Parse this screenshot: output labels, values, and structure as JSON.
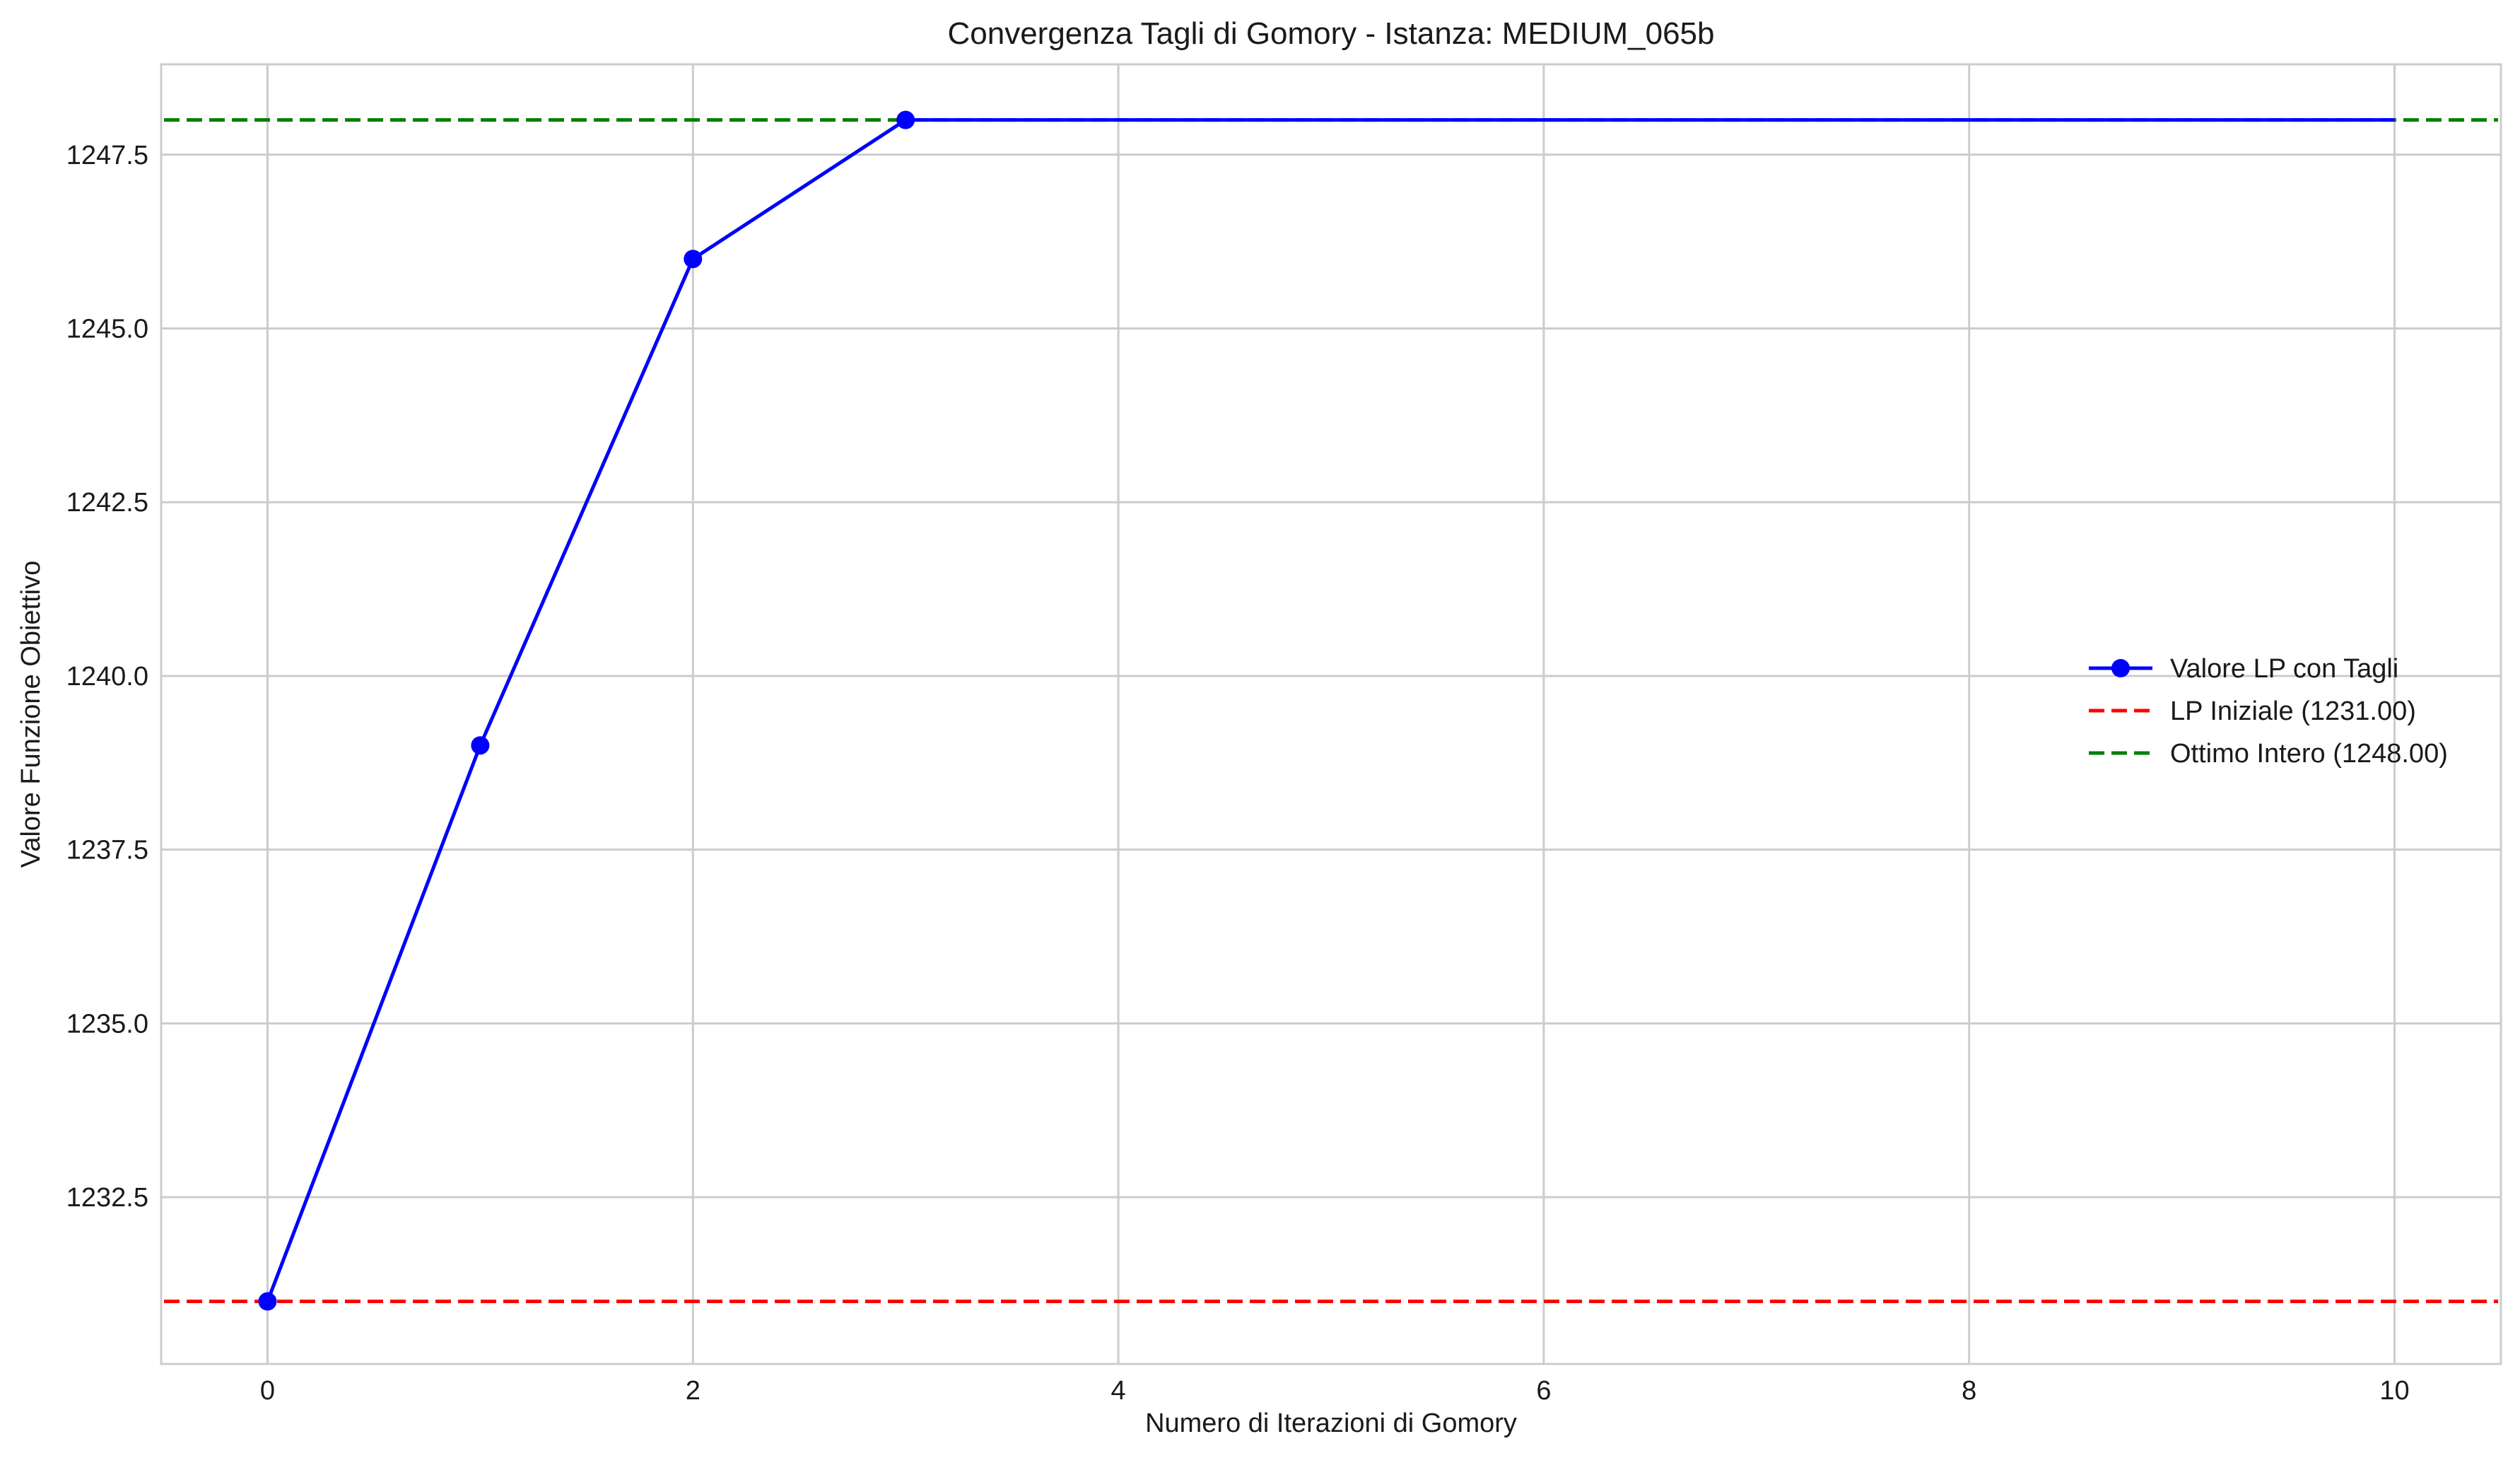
{
  "chart_data": {
    "type": "line",
    "title": "Convergenza Tagli di Gomory - Istanza: MEDIUM_065b",
    "xlabel": "Numero di Iterazioni di Gomory",
    "ylabel": "Valore Funzione Obiettivo",
    "xlim": [
      -0.5,
      10.5
    ],
    "ylim": [
      1230.1,
      1248.8
    ],
    "xticks": [
      0,
      2,
      4,
      6,
      8,
      10
    ],
    "xtick_labels": [
      "0",
      "2",
      "4",
      "6",
      "8",
      "10"
    ],
    "yticks": [
      1232.5,
      1235.0,
      1237.5,
      1240.0,
      1242.5,
      1245.0,
      1247.5
    ],
    "ytick_labels": [
      "1232.5",
      "1235.0",
      "1237.5",
      "1240.0",
      "1242.5",
      "1245.0",
      "1247.5"
    ],
    "grid": true,
    "legend_position": "center-right",
    "series": [
      {
        "name": "Valore LP con Tagli",
        "style": "solid-with-markers",
        "color": "#0000ff",
        "x": [
          0,
          1,
          2,
          3,
          4,
          5,
          6,
          7,
          8,
          9,
          10
        ],
        "y": [
          1231,
          1239,
          1246,
          1248,
          1248,
          1248,
          1248,
          1248,
          1248,
          1248,
          1248
        ],
        "marker_x": [
          0,
          1,
          2,
          3
        ],
        "marker_y": [
          1231,
          1239,
          1246,
          1248
        ]
      },
      {
        "name": "LP Iniziale (1231.00)",
        "style": "dashed",
        "color": "#ff0000",
        "y": 1231
      },
      {
        "name": "Ottimo Intero (1248.00)",
        "style": "dashed",
        "color": "#008000",
        "y": 1248
      }
    ]
  }
}
